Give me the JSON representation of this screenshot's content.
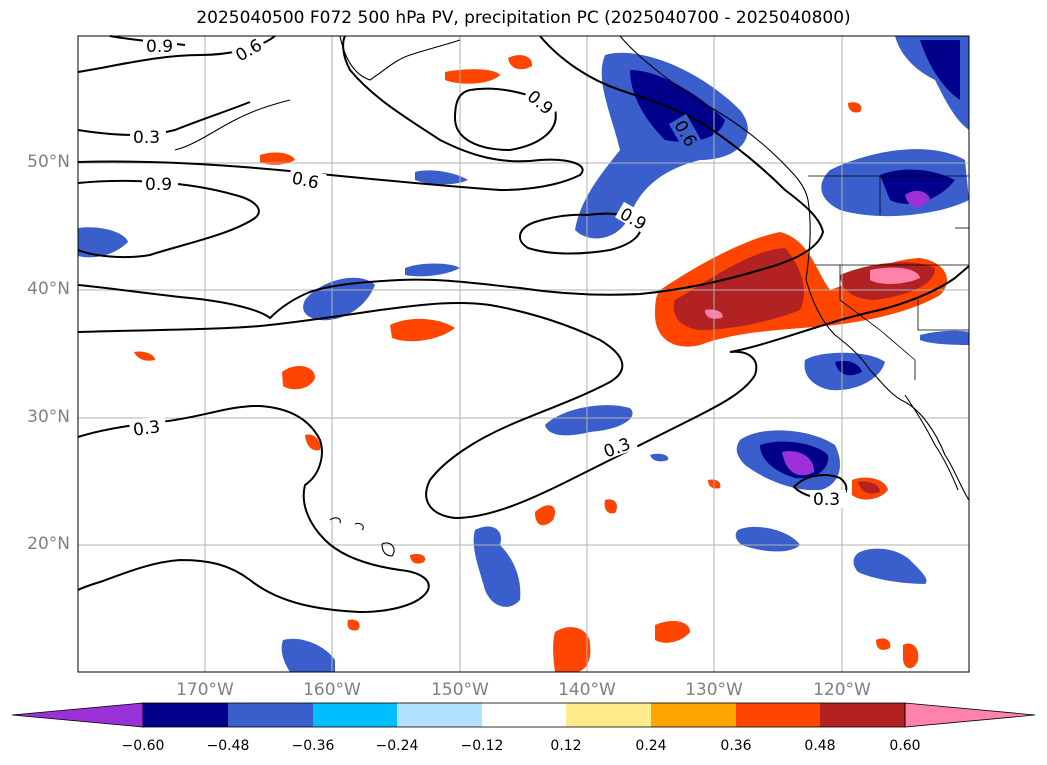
{
  "title": "2025040500 F072 500 hPa PV, precipitation PC (2025040700 - 2025040800)",
  "lat_labels": [
    "50°N",
    "40°N",
    "30°N",
    "20°N"
  ],
  "lon_labels": [
    "170°W",
    "160°W",
    "150°W",
    "140°W",
    "130°W",
    "120°W"
  ],
  "contour_labels": [
    "0.9",
    "0.6",
    "0.3",
    "0.9",
    "0.6",
    "0.9",
    "0.9",
    "0.6",
    "0.3",
    "0.3",
    "0.3"
  ],
  "colorbar": {
    "ticks": [
      "−0.60",
      "−0.48",
      "−0.36",
      "−0.24",
      "−0.12",
      "0.12",
      "0.24",
      "0.36",
      "0.48",
      "0.60"
    ],
    "colors": [
      "#9b30d9",
      "#00008b",
      "#3a5fcd",
      "#00bfff",
      "#b0e2ff",
      "#ffffff",
      "#ffec8b",
      "#ffa500",
      "#ff4500",
      "#b22222",
      "#ff82ab"
    ]
  },
  "map_extent": {
    "lon": [
      -180,
      -110
    ],
    "lat": [
      10,
      60
    ]
  }
}
